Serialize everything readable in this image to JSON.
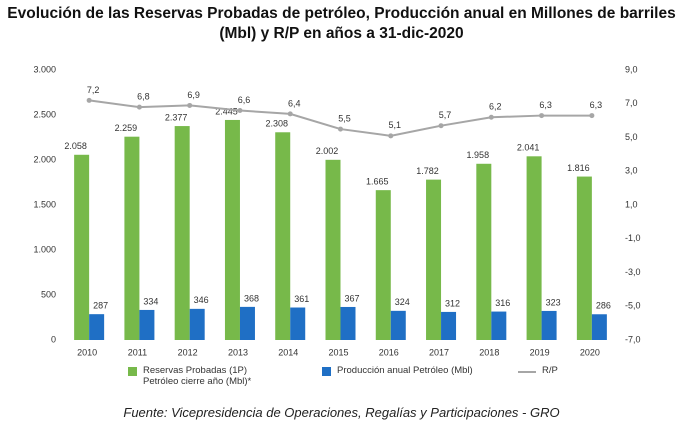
{
  "chart_data": {
    "type": "bar",
    "title": "Evolución de las Reservas Probadas de petróleo, Producción anual en Millones de barriles (Mbl) y R/P en años a 31-dic-2020",
    "categories": [
      "2010",
      "2011",
      "2012",
      "2013",
      "2014",
      "2015",
      "2016",
      "2017",
      "2018",
      "2019",
      "2020"
    ],
    "series": [
      {
        "name": "Reservas Probadas (1P) Petróleo cierre año (Mbl)*",
        "type": "bar",
        "color": "#77b94a",
        "values": [
          2058,
          2259,
          2377,
          2445,
          2308,
          2002,
          1665,
          1782,
          1958,
          2041,
          1816
        ],
        "value_labels": [
          "2.058",
          "2.259",
          "2.377",
          "2.445",
          "2.308",
          "2.002",
          "1.665",
          "1.782",
          "1.958",
          "2.041",
          "1.816"
        ]
      },
      {
        "name": "Producción anual Petróleo (Mbl)",
        "type": "bar",
        "color": "#1f6fc5",
        "values": [
          287,
          334,
          346,
          368,
          361,
          367,
          324,
          312,
          316,
          323,
          286
        ]
      },
      {
        "name": "R/P",
        "type": "line",
        "axis": "y2",
        "color": "#a6a6a6",
        "values": [
          7.2,
          6.8,
          6.9,
          6.6,
          6.4,
          5.5,
          5.1,
          5.7,
          6.2,
          6.3,
          6.3
        ],
        "value_labels": [
          "7,2",
          "6,8",
          "6,9",
          "6,6",
          "6,4",
          "5,5",
          "5,1",
          "5,7",
          "6,2",
          "6,3",
          "6,3"
        ]
      }
    ],
    "ylim": [
      0,
      3000
    ],
    "yticks": [
      0,
      500,
      {
        "value": 1000,
        "label": "1.000"
      },
      {
        "value": 1500,
        "label": "1.500"
      },
      {
        "value": 2000,
        "label": "2.000"
      },
      {
        "value": 2500,
        "label": "2.500"
      },
      {
        "value": 3000,
        "label": "3.000"
      }
    ],
    "y2lim": [
      -7,
      9
    ],
    "y2ticks": [
      {
        "value": -7,
        "label": "-7,0"
      },
      {
        "value": -5,
        "label": "-5,0"
      },
      {
        "value": -3,
        "label": "-3,0"
      },
      {
        "value": -1,
        "label": "-1,0"
      },
      {
        "value": 1,
        "label": "1,0"
      },
      {
        "value": 3,
        "label": "3,0"
      },
      {
        "value": 5,
        "label": "5,0"
      },
      {
        "value": 7,
        "label": "7,0"
      },
      {
        "value": 9,
        "label": "9,0"
      }
    ],
    "source": "Fuente: Vicepresidencia de Operaciones, Regalías y Participaciones - GRO"
  }
}
